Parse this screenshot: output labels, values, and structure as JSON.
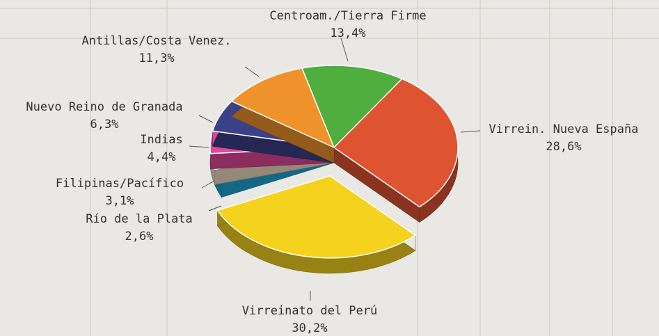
{
  "chart_data": {
    "type": "pie",
    "categories": [
      "Centroam./Tierra Firme",
      "Virrein. Nueva España",
      "Virreinato del Perú",
      "Río de la Plata",
      "Filipinas/Pacífico",
      "Indias",
      "Nuevo Reino de Granada",
      "Antillas/Costa Venez."
    ],
    "values": [
      13.4,
      28.6,
      30.2,
      2.6,
      3.1,
      4.4,
      6.3,
      11.3
    ],
    "value_labels": [
      "13,4%",
      "28,6%",
      "30,2%",
      "2,6%",
      "3,1%",
      "4,4%",
      "6,3%",
      "11,3%"
    ],
    "colors": [
      "#4fae3e",
      "#de5330",
      "#f5d21e",
      "#1ea8d8",
      "#efdcc2",
      "#e0489a",
      "#3b4189",
      "#ef922c"
    ],
    "explode": [
      0,
      0,
      1,
      0,
      0,
      0,
      0,
      0
    ]
  }
}
